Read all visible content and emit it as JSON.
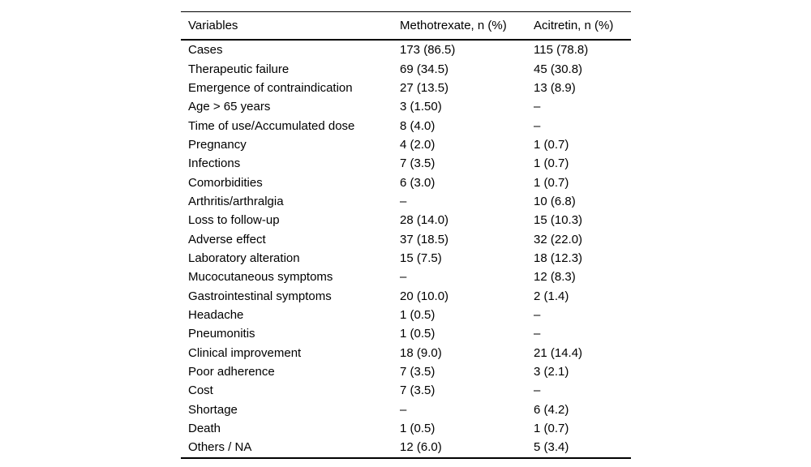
{
  "table": {
    "columns": [
      "Variables",
      "Methotrexate, n (%)",
      "Acitretin, n (%)"
    ],
    "rows": [
      [
        "Cases",
        "173 (86.5)",
        "115 (78.8)"
      ],
      [
        "Therapeutic failure",
        "69 (34.5)",
        "45 (30.8)"
      ],
      [
        "Emergence of contraindication",
        "27 (13.5)",
        "13 (8.9)"
      ],
      [
        "Age > 65 years",
        "3 (1.50)",
        "–"
      ],
      [
        "Time of use/Accumulated dose",
        "8 (4.0)",
        "–"
      ],
      [
        "Pregnancy",
        "4 (2.0)",
        "1 (0.7)"
      ],
      [
        "Infections",
        "7 (3.5)",
        "1 (0.7)"
      ],
      [
        "Comorbidities",
        "6 (3.0)",
        "1 (0.7)"
      ],
      [
        "Arthritis/arthralgia",
        "–",
        "10 (6.8)"
      ],
      [
        "Loss to follow-up",
        "28 (14.0)",
        "15 (10.3)"
      ],
      [
        "Adverse effect",
        "37 (18.5)",
        "32 (22.0)"
      ],
      [
        "Laboratory alteration",
        "15 (7.5)",
        "18 (12.3)"
      ],
      [
        "Mucocutaneous symptoms",
        "–",
        "12 (8.3)"
      ],
      [
        "Gastrointestinal symptoms",
        "20 (10.0)",
        "2 (1.4)"
      ],
      [
        "Headache",
        "1 (0.5)",
        "–"
      ],
      [
        "Pneumonitis",
        "1 (0.5)",
        "–"
      ],
      [
        "Clinical improvement",
        "18 (9.0)",
        "21 (14.4)"
      ],
      [
        "Poor adherence",
        "7 (3.5)",
        "3 (2.1)"
      ],
      [
        "Cost",
        "7 (3.5)",
        "–"
      ],
      [
        "Shortage",
        "–",
        "6 (4.2)"
      ],
      [
        "Death",
        "1 (0.5)",
        "1 (0.7)"
      ],
      [
        "Others / NA",
        "12 (6.0)",
        "5 (3.4)"
      ]
    ],
    "colors": {
      "text": "#000000",
      "rule": "#000000",
      "background": "#ffffff"
    }
  }
}
